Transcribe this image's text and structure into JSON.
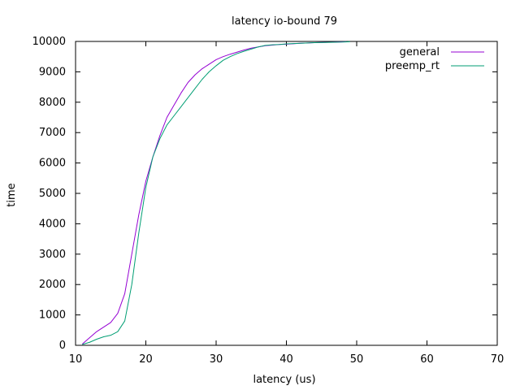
{
  "chart_data": {
    "type": "line",
    "title": "latency io-bound 79",
    "xlabel": "latency (us)",
    "ylabel": "time",
    "xlim": [
      10,
      70
    ],
    "ylim": [
      0,
      10000
    ],
    "x_ticks": [
      10,
      20,
      30,
      40,
      50,
      60,
      70
    ],
    "y_ticks": [
      0,
      1000,
      2000,
      3000,
      4000,
      5000,
      6000,
      7000,
      8000,
      9000,
      10000
    ],
    "grid": false,
    "legend_position": "top-right",
    "series": [
      {
        "name": "general",
        "color": "#9400d3",
        "points": [
          [
            11,
            50
          ],
          [
            12,
            250
          ],
          [
            13,
            450
          ],
          [
            14,
            600
          ],
          [
            15,
            750
          ],
          [
            16,
            1050
          ],
          [
            17,
            1700
          ],
          [
            18,
            3000
          ],
          [
            19,
            4300
          ],
          [
            20,
            5400
          ],
          [
            21,
            6200
          ],
          [
            22,
            6900
          ],
          [
            23,
            7500
          ],
          [
            24,
            7900
          ],
          [
            25,
            8300
          ],
          [
            26,
            8650
          ],
          [
            27,
            8900
          ],
          [
            28,
            9100
          ],
          [
            29,
            9250
          ],
          [
            30,
            9400
          ],
          [
            31,
            9500
          ],
          [
            32,
            9580
          ],
          [
            33,
            9650
          ],
          [
            34,
            9720
          ],
          [
            35,
            9780
          ],
          [
            36,
            9820
          ],
          [
            37,
            9860
          ],
          [
            38,
            9880
          ],
          [
            39,
            9900
          ],
          [
            40,
            9910
          ],
          [
            42,
            9940
          ],
          [
            44,
            9960
          ],
          [
            46,
            9975
          ],
          [
            48,
            9985
          ],
          [
            48.5,
            9990
          ]
        ]
      },
      {
        "name": "preemp_rt",
        "color": "#009e73",
        "points": [
          [
            11,
            30
          ],
          [
            12,
            100
          ],
          [
            13,
            200
          ],
          [
            14,
            280
          ],
          [
            15,
            330
          ],
          [
            16,
            450
          ],
          [
            17,
            800
          ],
          [
            18,
            2000
          ],
          [
            19,
            3700
          ],
          [
            20,
            5200
          ],
          [
            21,
            6200
          ],
          [
            22,
            6800
          ],
          [
            23,
            7250
          ],
          [
            24,
            7550
          ],
          [
            25,
            7850
          ],
          [
            26,
            8150
          ],
          [
            27,
            8450
          ],
          [
            28,
            8750
          ],
          [
            29,
            9000
          ],
          [
            30,
            9200
          ],
          [
            31,
            9380
          ],
          [
            32,
            9500
          ],
          [
            33,
            9600
          ],
          [
            34,
            9680
          ],
          [
            35,
            9750
          ],
          [
            36,
            9820
          ],
          [
            37,
            9870
          ],
          [
            38,
            9890
          ],
          [
            39,
            9900
          ],
          [
            40,
            9920
          ],
          [
            42,
            9940
          ],
          [
            44,
            9960
          ],
          [
            46,
            9970
          ],
          [
            48,
            9980
          ],
          [
            49,
            9990
          ]
        ]
      }
    ]
  }
}
